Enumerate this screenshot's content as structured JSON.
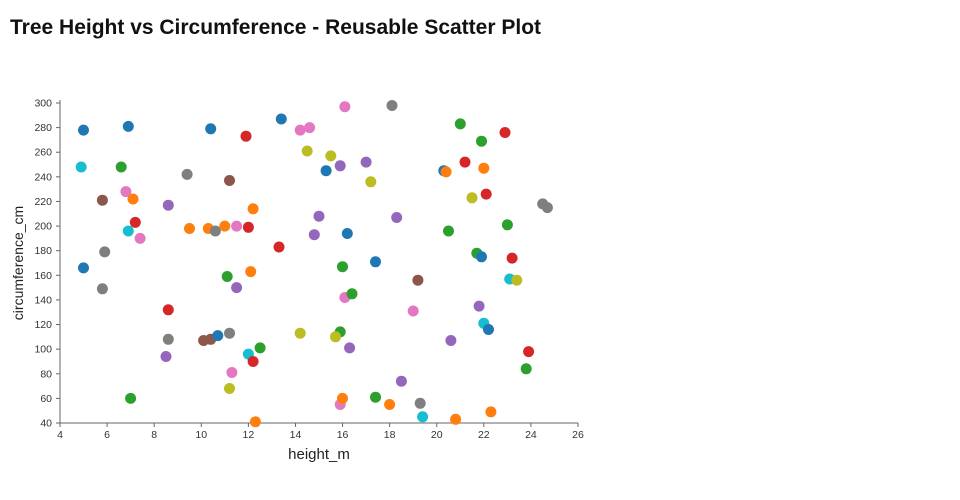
{
  "page": {
    "title": "Tree Height vs Circumference - Reusable Scatter Plot"
  },
  "chart_data": {
    "type": "scatter",
    "title": "Tree Height vs Circumference - Reusable Scatter Plot",
    "xlabel": "height_m",
    "ylabel": "circumference_cm",
    "xlim": [
      4,
      26
    ],
    "ylim": [
      40,
      300
    ],
    "x_ticks": [
      4,
      6,
      8,
      10,
      12,
      14,
      16,
      18,
      20,
      22,
      24,
      26
    ],
    "y_ticks": [
      40,
      60,
      80,
      100,
      120,
      140,
      160,
      180,
      200,
      220,
      240,
      260,
      280,
      300
    ],
    "grid": false,
    "legend": "none",
    "marker_radius_px": 5.5,
    "axis_color": "#666666",
    "tick_text_color": "#333333",
    "palette": {
      "blue": "#1f77b4",
      "orange": "#ff7f0e",
      "green": "#2ca02c",
      "red": "#d62728",
      "purple": "#9467bd",
      "brown": "#8c564b",
      "pink": "#e377c2",
      "gray": "#7f7f7f",
      "olive": "#bcbd22",
      "cyan": "#17becf"
    },
    "points": [
      {
        "x": 5.0,
        "y": 278,
        "c": "blue"
      },
      {
        "x": 4.9,
        "y": 248,
        "c": "cyan"
      },
      {
        "x": 5.0,
        "y": 166,
        "c": "blue"
      },
      {
        "x": 5.8,
        "y": 221,
        "c": "brown"
      },
      {
        "x": 5.9,
        "y": 179,
        "c": "gray"
      },
      {
        "x": 5.8,
        "y": 149,
        "c": "gray"
      },
      {
        "x": 6.9,
        "y": 281,
        "c": "blue"
      },
      {
        "x": 6.6,
        "y": 248,
        "c": "green"
      },
      {
        "x": 6.8,
        "y": 228,
        "c": "pink"
      },
      {
        "x": 7.1,
        "y": 222,
        "c": "orange"
      },
      {
        "x": 7.2,
        "y": 203,
        "c": "red"
      },
      {
        "x": 6.9,
        "y": 196,
        "c": "cyan"
      },
      {
        "x": 7.4,
        "y": 190,
        "c": "pink"
      },
      {
        "x": 7.0,
        "y": 60,
        "c": "green"
      },
      {
        "x": 8.5,
        "y": 94,
        "c": "purple"
      },
      {
        "x": 8.6,
        "y": 132,
        "c": "red"
      },
      {
        "x": 8.6,
        "y": 217,
        "c": "purple"
      },
      {
        "x": 8.6,
        "y": 108,
        "c": "gray"
      },
      {
        "x": 9.4,
        "y": 242,
        "c": "gray"
      },
      {
        "x": 9.5,
        "y": 198,
        "c": "orange"
      },
      {
        "x": 10.4,
        "y": 279,
        "c": "blue"
      },
      {
        "x": 10.3,
        "y": 198,
        "c": "orange"
      },
      {
        "x": 10.6,
        "y": 196,
        "c": "gray"
      },
      {
        "x": 10.1,
        "y": 107,
        "c": "brown"
      },
      {
        "x": 10.4,
        "y": 108,
        "c": "brown"
      },
      {
        "x": 10.7,
        "y": 111,
        "c": "blue"
      },
      {
        "x": 11.2,
        "y": 237,
        "c": "brown"
      },
      {
        "x": 11.0,
        "y": 200,
        "c": "orange"
      },
      {
        "x": 11.5,
        "y": 200,
        "c": "pink"
      },
      {
        "x": 11.1,
        "y": 159,
        "c": "green"
      },
      {
        "x": 11.5,
        "y": 150,
        "c": "purple"
      },
      {
        "x": 11.2,
        "y": 113,
        "c": "gray"
      },
      {
        "x": 11.3,
        "y": 81,
        "c": "pink"
      },
      {
        "x": 11.2,
        "y": 68,
        "c": "olive"
      },
      {
        "x": 11.9,
        "y": 273,
        "c": "red"
      },
      {
        "x": 12.2,
        "y": 214,
        "c": "orange"
      },
      {
        "x": 12.0,
        "y": 199,
        "c": "red"
      },
      {
        "x": 12.1,
        "y": 163,
        "c": "orange"
      },
      {
        "x": 12.0,
        "y": 96,
        "c": "cyan"
      },
      {
        "x": 12.2,
        "y": 90,
        "c": "red"
      },
      {
        "x": 12.5,
        "y": 101,
        "c": "green"
      },
      {
        "x": 12.3,
        "y": 41,
        "c": "orange"
      },
      {
        "x": 13.4,
        "y": 287,
        "c": "blue"
      },
      {
        "x": 13.3,
        "y": 183,
        "c": "red"
      },
      {
        "x": 14.2,
        "y": 278,
        "c": "pink"
      },
      {
        "x": 14.6,
        "y": 280,
        "c": "pink"
      },
      {
        "x": 14.5,
        "y": 261,
        "c": "olive"
      },
      {
        "x": 14.8,
        "y": 193,
        "c": "purple"
      },
      {
        "x": 15.0,
        "y": 208,
        "c": "purple"
      },
      {
        "x": 14.2,
        "y": 113,
        "c": "olive"
      },
      {
        "x": 15.3,
        "y": 245,
        "c": "blue"
      },
      {
        "x": 15.5,
        "y": 257,
        "c": "olive"
      },
      {
        "x": 15.9,
        "y": 249,
        "c": "purple"
      },
      {
        "x": 16.1,
        "y": 297,
        "c": "pink"
      },
      {
        "x": 16.2,
        "y": 194,
        "c": "blue"
      },
      {
        "x": 16.0,
        "y": 167,
        "c": "green"
      },
      {
        "x": 15.9,
        "y": 114,
        "c": "green"
      },
      {
        "x": 15.7,
        "y": 110,
        "c": "olive"
      },
      {
        "x": 16.3,
        "y": 101,
        "c": "purple"
      },
      {
        "x": 16.1,
        "y": 142,
        "c": "pink"
      },
      {
        "x": 16.4,
        "y": 145,
        "c": "green"
      },
      {
        "x": 15.9,
        "y": 55,
        "c": "pink"
      },
      {
        "x": 16.0,
        "y": 60,
        "c": "orange"
      },
      {
        "x": 17.0,
        "y": 252,
        "c": "purple"
      },
      {
        "x": 17.2,
        "y": 236,
        "c": "olive"
      },
      {
        "x": 17.4,
        "y": 171,
        "c": "blue"
      },
      {
        "x": 17.4,
        "y": 61,
        "c": "green"
      },
      {
        "x": 18.1,
        "y": 298,
        "c": "gray"
      },
      {
        "x": 18.3,
        "y": 207,
        "c": "purple"
      },
      {
        "x": 18.0,
        "y": 55,
        "c": "orange"
      },
      {
        "x": 18.5,
        "y": 74,
        "c": "purple"
      },
      {
        "x": 19.2,
        "y": 156,
        "c": "brown"
      },
      {
        "x": 19.0,
        "y": 131,
        "c": "pink"
      },
      {
        "x": 19.3,
        "y": 56,
        "c": "gray"
      },
      {
        "x": 19.4,
        "y": 45,
        "c": "cyan"
      },
      {
        "x": 20.3,
        "y": 245,
        "c": "blue"
      },
      {
        "x": 20.4,
        "y": 244,
        "c": "orange"
      },
      {
        "x": 20.5,
        "y": 196,
        "c": "green"
      },
      {
        "x": 20.6,
        "y": 107,
        "c": "purple"
      },
      {
        "x": 20.8,
        "y": 43,
        "c": "orange"
      },
      {
        "x": 21.0,
        "y": 283,
        "c": "green"
      },
      {
        "x": 21.2,
        "y": 252,
        "c": "red"
      },
      {
        "x": 21.5,
        "y": 223,
        "c": "olive"
      },
      {
        "x": 21.7,
        "y": 178,
        "c": "green"
      },
      {
        "x": 21.9,
        "y": 175,
        "c": "blue"
      },
      {
        "x": 21.9,
        "y": 269,
        "c": "green"
      },
      {
        "x": 22.0,
        "y": 247,
        "c": "orange"
      },
      {
        "x": 22.1,
        "y": 226,
        "c": "red"
      },
      {
        "x": 21.8,
        "y": 135,
        "c": "purple"
      },
      {
        "x": 22.0,
        "y": 121,
        "c": "cyan"
      },
      {
        "x": 22.2,
        "y": 116,
        "c": "blue"
      },
      {
        "x": 22.3,
        "y": 49,
        "c": "orange"
      },
      {
        "x": 22.9,
        "y": 276,
        "c": "red"
      },
      {
        "x": 23.0,
        "y": 201,
        "c": "green"
      },
      {
        "x": 23.2,
        "y": 174,
        "c": "red"
      },
      {
        "x": 23.1,
        "y": 157,
        "c": "cyan"
      },
      {
        "x": 23.4,
        "y": 156,
        "c": "olive"
      },
      {
        "x": 23.9,
        "y": 98,
        "c": "red"
      },
      {
        "x": 23.8,
        "y": 84,
        "c": "green"
      },
      {
        "x": 24.5,
        "y": 218,
        "c": "gray"
      },
      {
        "x": 24.7,
        "y": 215,
        "c": "gray"
      }
    ]
  }
}
